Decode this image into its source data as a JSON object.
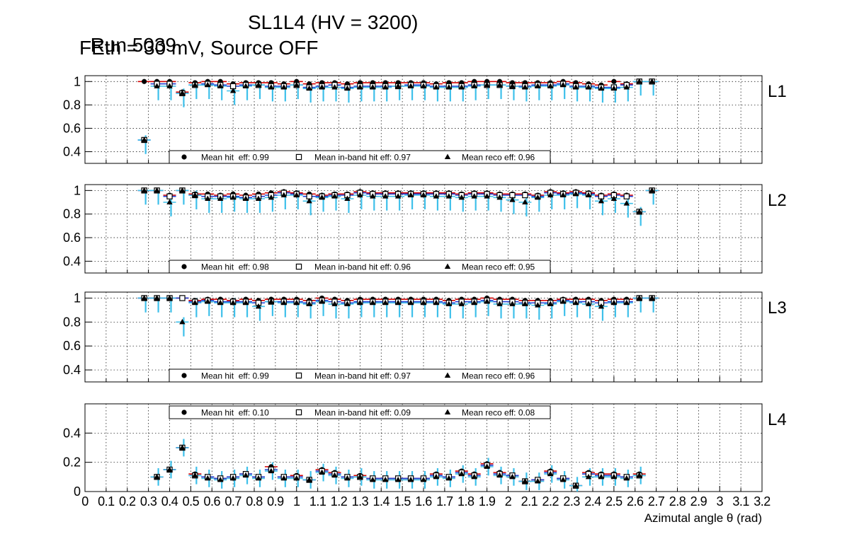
{
  "header": {
    "run": "Run 5039",
    "chamber": "SL1L4 (HV = 3200)",
    "settings": "FEth = 30 mV, Source OFF"
  },
  "colors": {
    "hit": "#d40000",
    "inband": "#1f3fd6",
    "reco": "#3ec0ea",
    "marker": "#000000"
  },
  "chart_data": [
    {
      "type": "scatter",
      "panel": "L1",
      "xlabel": "Azimutal angle θ (rad)",
      "xlim": [
        0,
        3.2
      ],
      "ylim": [
        0.3,
        1.05
      ],
      "yticks": [
        "0.4",
        "0.6",
        "0.8",
        "1"
      ],
      "legend": [
        "Mean hit  eff: 0.99",
        "Mean in-band hit eff: 0.97",
        "Mean reco eff: 0.96"
      ],
      "legend_position": "bottom-center",
      "x": [
        0.28,
        0.34,
        0.4,
        0.46,
        0.52,
        0.58,
        0.64,
        0.7,
        0.76,
        0.82,
        0.88,
        0.94,
        1.0,
        1.06,
        1.12,
        1.18,
        1.24,
        1.3,
        1.36,
        1.42,
        1.48,
        1.54,
        1.6,
        1.66,
        1.72,
        1.78,
        1.84,
        1.9,
        1.96,
        2.02,
        2.08,
        2.14,
        2.2,
        2.26,
        2.32,
        2.38,
        2.44,
        2.5,
        2.56,
        2.62,
        2.68
      ],
      "series": [
        {
          "name": "hit",
          "values": [
            1.0,
            1.0,
            1.0,
            0.91,
            0.99,
            1.0,
            1.0,
            0.98,
            0.99,
            0.99,
            0.99,
            0.98,
            1.0,
            0.98,
            0.99,
            0.99,
            0.98,
            0.99,
            0.99,
            0.99,
            0.99,
            0.99,
            0.99,
            0.98,
            0.99,
            0.99,
            1.0,
            1.0,
            1.0,
            0.99,
            0.99,
            0.99,
            0.99,
            1.0,
            0.99,
            0.98,
            0.97,
            1.0,
            0.98,
            1.0,
            1.0
          ]
        },
        {
          "name": "inband",
          "values": [
            0.5,
            0.98,
            0.98,
            0.9,
            0.97,
            0.98,
            0.97,
            0.96,
            0.97,
            0.97,
            0.96,
            0.96,
            0.97,
            0.95,
            0.96,
            0.97,
            0.95,
            0.96,
            0.96,
            0.96,
            0.96,
            0.97,
            0.97,
            0.96,
            0.96,
            0.96,
            0.97,
            0.97,
            0.97,
            0.96,
            0.96,
            0.97,
            0.97,
            0.98,
            0.96,
            0.96,
            0.95,
            0.95,
            0.97,
            1.0,
            1.0
          ]
        },
        {
          "name": "reco",
          "values": [
            0.5,
            0.96,
            0.96,
            0.9,
            0.97,
            0.97,
            0.96,
            0.92,
            0.96,
            0.97,
            0.95,
            0.95,
            0.97,
            0.94,
            0.95,
            0.95,
            0.94,
            0.95,
            0.95,
            0.95,
            0.96,
            0.96,
            0.96,
            0.95,
            0.95,
            0.95,
            0.96,
            0.97,
            0.97,
            0.96,
            0.95,
            0.96,
            0.96,
            0.97,
            0.95,
            0.95,
            0.94,
            0.94,
            0.95,
            1.0,
            1.0
          ]
        }
      ]
    },
    {
      "type": "scatter",
      "panel": "L2",
      "xlabel": "Azimutal angle θ (rad)",
      "xlim": [
        0,
        3.2
      ],
      "ylim": [
        0.3,
        1.05
      ],
      "yticks": [
        "0.4",
        "0.6",
        "0.8",
        "1"
      ],
      "legend": [
        "Mean hit  eff: 0.98",
        "Mean in-band hit eff: 0.96",
        "Mean reco eff: 0.95"
      ],
      "legend_position": "bottom-center",
      "x": [
        0.28,
        0.34,
        0.4,
        0.46,
        0.52,
        0.58,
        0.64,
        0.7,
        0.76,
        0.82,
        0.88,
        0.94,
        1.0,
        1.06,
        1.12,
        1.18,
        1.24,
        1.3,
        1.36,
        1.42,
        1.48,
        1.54,
        1.6,
        1.66,
        1.72,
        1.78,
        1.84,
        1.9,
        1.96,
        2.02,
        2.08,
        2.14,
        2.2,
        2.26,
        2.32,
        2.38,
        2.44,
        2.5,
        2.56,
        2.62,
        2.68
      ],
      "series": [
        {
          "name": "hit",
          "values": [
            1.0,
            1.0,
            0.96,
            1.0,
            0.97,
            0.97,
            0.96,
            0.97,
            0.96,
            0.97,
            0.98,
            0.99,
            0.98,
            0.97,
            0.96,
            0.97,
            0.97,
            0.99,
            0.98,
            0.98,
            0.98,
            0.98,
            0.98,
            0.98,
            0.98,
            0.97,
            0.98,
            0.98,
            0.97,
            0.97,
            0.97,
            0.96,
            0.99,
            0.98,
            0.99,
            0.98,
            0.96,
            0.97,
            0.96,
            0.82,
            1.0
          ]
        },
        {
          "name": "inband",
          "values": [
            1.0,
            1.0,
            0.95,
            1.0,
            0.96,
            0.95,
            0.95,
            0.95,
            0.94,
            0.95,
            0.96,
            0.98,
            0.97,
            0.95,
            0.95,
            0.96,
            0.96,
            0.98,
            0.97,
            0.97,
            0.97,
            0.97,
            0.97,
            0.97,
            0.97,
            0.96,
            0.97,
            0.97,
            0.96,
            0.96,
            0.96,
            0.95,
            0.98,
            0.97,
            0.98,
            0.97,
            0.95,
            0.96,
            0.95,
            0.82,
            1.0
          ]
        },
        {
          "name": "reco",
          "values": [
            1.0,
            1.0,
            0.9,
            1.0,
            0.96,
            0.93,
            0.93,
            0.94,
            0.93,
            0.93,
            0.94,
            0.96,
            0.96,
            0.91,
            0.94,
            0.95,
            0.93,
            0.96,
            0.95,
            0.95,
            0.95,
            0.96,
            0.96,
            0.95,
            0.95,
            0.94,
            0.95,
            0.95,
            0.94,
            0.92,
            0.9,
            0.94,
            0.96,
            0.96,
            0.97,
            0.96,
            0.91,
            0.93,
            0.89,
            0.82,
            1.0
          ]
        }
      ]
    },
    {
      "type": "scatter",
      "panel": "L3",
      "xlabel": "Azimutal angle θ (rad)",
      "xlim": [
        0,
        3.2
      ],
      "ylim": [
        0.3,
        1.05
      ],
      "yticks": [
        "0.4",
        "0.6",
        "0.8",
        "1"
      ],
      "legend": [
        "Mean hit  eff: 0.99",
        "Mean in-band hit eff: 0.97",
        "Mean reco eff: 0.96"
      ],
      "legend_position": "bottom-center",
      "x": [
        0.28,
        0.34,
        0.4,
        0.46,
        0.52,
        0.58,
        0.64,
        0.7,
        0.76,
        0.82,
        0.88,
        0.94,
        1.0,
        1.06,
        1.12,
        1.18,
        1.24,
        1.3,
        1.36,
        1.42,
        1.48,
        1.54,
        1.6,
        1.66,
        1.72,
        1.78,
        1.84,
        1.9,
        1.96,
        2.02,
        2.08,
        2.14,
        2.2,
        2.26,
        2.32,
        2.38,
        2.44,
        2.5,
        2.56,
        2.62,
        2.68
      ],
      "series": [
        {
          "name": "hit",
          "values": [
            1.0,
            1.0,
            1.0,
            1.0,
            0.98,
            0.99,
            0.99,
            0.98,
            0.99,
            0.98,
            0.99,
            0.99,
            0.99,
            0.98,
            1.0,
            0.99,
            0.98,
            0.99,
            0.99,
            0.99,
            0.99,
            0.99,
            0.99,
            0.99,
            0.98,
            0.99,
            0.99,
            1.0,
            0.99,
            0.99,
            0.98,
            0.98,
            0.98,
            0.99,
            0.99,
            0.99,
            0.98,
            0.99,
            0.99,
            1.0,
            1.0
          ]
        },
        {
          "name": "inband",
          "values": [
            1.0,
            1.0,
            1.0,
            1.0,
            0.97,
            0.98,
            0.97,
            0.97,
            0.97,
            0.96,
            0.97,
            0.97,
            0.97,
            0.96,
            0.98,
            0.97,
            0.96,
            0.97,
            0.97,
            0.97,
            0.97,
            0.97,
            0.97,
            0.97,
            0.96,
            0.97,
            0.97,
            0.98,
            0.97,
            0.97,
            0.96,
            0.96,
            0.96,
            0.98,
            0.97,
            0.97,
            0.96,
            0.97,
            0.97,
            1.0,
            1.0
          ]
        },
        {
          "name": "reco",
          "values": [
            1.0,
            1.0,
            1.0,
            0.8,
            0.96,
            0.97,
            0.96,
            0.96,
            0.96,
            0.93,
            0.97,
            0.96,
            0.96,
            0.95,
            0.97,
            0.95,
            0.95,
            0.96,
            0.96,
            0.96,
            0.96,
            0.96,
            0.96,
            0.96,
            0.95,
            0.95,
            0.96,
            0.97,
            0.95,
            0.95,
            0.95,
            0.94,
            0.95,
            0.97,
            0.96,
            0.95,
            0.93,
            0.96,
            0.96,
            1.0,
            1.0
          ]
        }
      ]
    },
    {
      "type": "scatter",
      "panel": "L4",
      "xlabel": "Azimutal angle θ (rad)",
      "xlim": [
        0,
        3.2
      ],
      "ylim": [
        0,
        0.6
      ],
      "yticks": [
        "0",
        "0.2",
        "0.4"
      ],
      "xticks": [
        "0",
        "0.1",
        "0.2",
        "0.3",
        "0.4",
        "0.5",
        "0.6",
        "0.7",
        "0.8",
        "0.9",
        "1",
        "1.1",
        "1.2",
        "1.3",
        "1.4",
        "1.5",
        "1.6",
        "1.7",
        "1.8",
        "1.9",
        "2",
        "2.1",
        "2.2",
        "2.3",
        "2.4",
        "2.5",
        "2.6",
        "2.7",
        "2.8",
        "2.9",
        "3",
        "3.1",
        "3.2"
      ],
      "legend": [
        "Mean hit  eff: 0.10",
        "Mean in-band hit eff: 0.09",
        "Mean reco eff: 0.08"
      ],
      "legend_position": "top-center",
      "x": [
        0.34,
        0.4,
        0.46,
        0.52,
        0.58,
        0.64,
        0.7,
        0.76,
        0.82,
        0.88,
        0.94,
        1.0,
        1.06,
        1.12,
        1.18,
        1.24,
        1.3,
        1.36,
        1.42,
        1.48,
        1.54,
        1.6,
        1.66,
        1.72,
        1.78,
        1.84,
        1.9,
        1.96,
        2.02,
        2.08,
        2.14,
        2.2,
        2.26,
        2.32,
        2.38,
        2.44,
        2.5,
        2.56,
        2.62
      ],
      "series": [
        {
          "name": "hit",
          "values": [
            0.1,
            0.15,
            0.3,
            0.12,
            0.1,
            0.09,
            0.1,
            0.12,
            0.1,
            0.17,
            0.1,
            0.11,
            0.08,
            0.15,
            0.13,
            0.1,
            0.11,
            0.09,
            0.09,
            0.09,
            0.09,
            0.09,
            0.12,
            0.1,
            0.14,
            0.12,
            0.19,
            0.13,
            0.11,
            0.07,
            0.08,
            0.14,
            0.09,
            0.04,
            0.13,
            0.12,
            0.12,
            0.1,
            0.12
          ]
        },
        {
          "name": "inband",
          "values": [
            0.1,
            0.15,
            0.3,
            0.11,
            0.1,
            0.09,
            0.1,
            0.12,
            0.1,
            0.15,
            0.1,
            0.1,
            0.08,
            0.14,
            0.12,
            0.1,
            0.1,
            0.09,
            0.09,
            0.09,
            0.09,
            0.09,
            0.11,
            0.1,
            0.13,
            0.11,
            0.18,
            0.12,
            0.11,
            0.07,
            0.08,
            0.13,
            0.09,
            0.04,
            0.12,
            0.11,
            0.11,
            0.1,
            0.11
          ]
        },
        {
          "name": "reco",
          "values": [
            0.1,
            0.15,
            0.3,
            0.11,
            0.09,
            0.08,
            0.09,
            0.11,
            0.09,
            0.14,
            0.09,
            0.09,
            0.08,
            0.13,
            0.11,
            0.09,
            0.1,
            0.08,
            0.08,
            0.08,
            0.08,
            0.08,
            0.1,
            0.09,
            0.12,
            0.1,
            0.17,
            0.11,
            0.1,
            0.07,
            0.07,
            0.12,
            0.08,
            0.04,
            0.1,
            0.1,
            0.1,
            0.09,
            0.11
          ]
        }
      ]
    }
  ]
}
